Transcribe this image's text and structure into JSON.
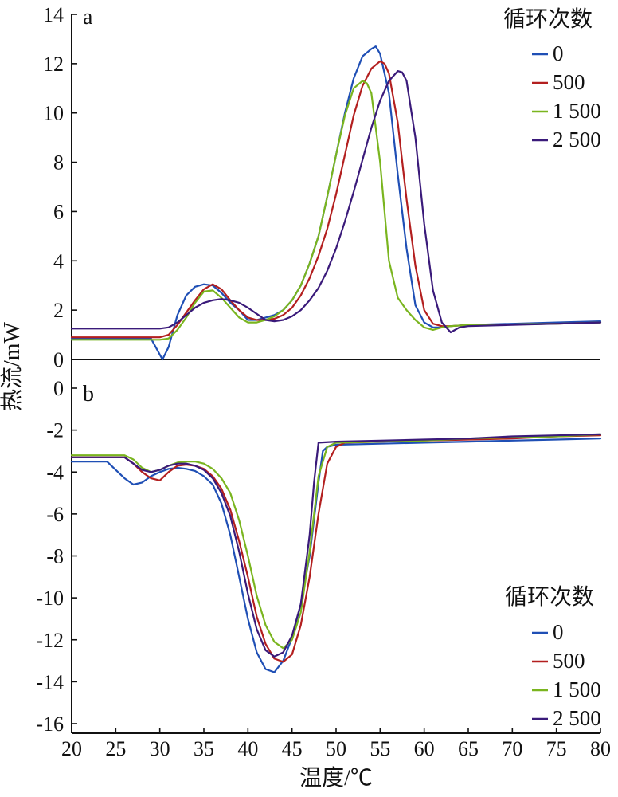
{
  "chart_data": [
    {
      "type": "line",
      "panel_label": "a",
      "x_ticks": [
        "20",
        "25",
        "30",
        "35",
        "40",
        "45",
        "50",
        "55",
        "60",
        "65",
        "70",
        "75",
        "80"
      ],
      "y_ticks": [
        "0",
        "2",
        "4",
        "6",
        "8",
        "10",
        "12",
        "14"
      ],
      "ylim": [
        0,
        14
      ],
      "xlim": [
        20,
        80
      ],
      "legend_title": "循环次数",
      "legend_position": "top-right",
      "series": [
        {
          "name": "0",
          "color": "#1f4fb5",
          "x": [
            20,
            29,
            30.3,
            31,
            32,
            33,
            34,
            35,
            36,
            37,
            38,
            39,
            40,
            41,
            42,
            43,
            44,
            45,
            46,
            47,
            48,
            49,
            50,
            51,
            52,
            53,
            54,
            54.5,
            55,
            56,
            57,
            58,
            59,
            60,
            61,
            62,
            63,
            65,
            70,
            75,
            80
          ],
          "y": [
            0.85,
            0.85,
            0,
            0.5,
            1.8,
            2.6,
            2.95,
            3.05,
            3.0,
            2.7,
            2.3,
            2.0,
            1.6,
            1.6,
            1.7,
            1.8,
            2.0,
            2.4,
            3.0,
            3.9,
            5.0,
            6.6,
            8.3,
            10.0,
            11.4,
            12.3,
            12.6,
            12.7,
            12.4,
            10.8,
            7.5,
            4.5,
            2.2,
            1.5,
            1.3,
            1.3,
            1.35,
            1.4,
            1.45,
            1.5,
            1.55
          ]
        },
        {
          "name": "500",
          "color": "#b31f1f",
          "x": [
            20,
            30,
            31,
            32,
            33,
            34,
            35,
            36,
            37,
            38,
            39,
            40,
            41,
            42,
            43,
            44,
            45,
            46,
            47,
            48,
            49,
            50,
            51,
            52,
            53,
            54,
            55,
            55.5,
            56,
            57,
            58,
            59,
            60,
            61,
            62,
            63,
            65,
            70,
            75,
            80
          ],
          "y": [
            0.9,
            0.9,
            1.0,
            1.4,
            1.9,
            2.4,
            2.85,
            3.05,
            2.85,
            2.4,
            2.0,
            1.7,
            1.6,
            1.6,
            1.65,
            1.8,
            2.1,
            2.6,
            3.3,
            4.2,
            5.3,
            6.7,
            8.3,
            9.9,
            11.1,
            11.8,
            12.1,
            12.0,
            11.6,
            9.6,
            6.5,
            3.8,
            2.0,
            1.45,
            1.35,
            1.35,
            1.4,
            1.42,
            1.45,
            1.5
          ]
        },
        {
          "name": "1 500",
          "color": "#7ab51f",
          "x": [
            20,
            30,
            31,
            32,
            33,
            34,
            35,
            36,
            37,
            38,
            39,
            40,
            41,
            42,
            43,
            44,
            45,
            46,
            47,
            48,
            49,
            50,
            51,
            52,
            53,
            53.5,
            54,
            55,
            56,
            57,
            58,
            59,
            60,
            61,
            62,
            63,
            65,
            70,
            75,
            80
          ],
          "y": [
            0.8,
            0.8,
            0.85,
            1.2,
            1.7,
            2.3,
            2.75,
            2.8,
            2.5,
            2.1,
            1.7,
            1.5,
            1.5,
            1.6,
            1.75,
            2.0,
            2.4,
            3.0,
            3.9,
            5.0,
            6.6,
            8.3,
            9.9,
            11.0,
            11.3,
            11.2,
            10.8,
            8.0,
            4.0,
            2.5,
            2.0,
            1.6,
            1.3,
            1.2,
            1.3,
            1.35,
            1.4,
            1.42,
            1.45,
            1.5
          ]
        },
        {
          "name": "2 500",
          "color": "#3a1a7a",
          "x": [
            20,
            30,
            31,
            32,
            33,
            34,
            35,
            36,
            37,
            38,
            39,
            40,
            41,
            42,
            43,
            44,
            45,
            46,
            47,
            48,
            49,
            50,
            51,
            52,
            53,
            54,
            55,
            56,
            57,
            57.5,
            58,
            59,
            60,
            61,
            62,
            63,
            64,
            65,
            70,
            75,
            80
          ],
          "y": [
            1.25,
            1.25,
            1.3,
            1.5,
            1.8,
            2.1,
            2.3,
            2.4,
            2.45,
            2.4,
            2.3,
            2.1,
            1.85,
            1.6,
            1.55,
            1.6,
            1.75,
            2.0,
            2.4,
            2.9,
            3.6,
            4.5,
            5.6,
            6.8,
            8.1,
            9.4,
            10.5,
            11.3,
            11.7,
            11.65,
            11.3,
            9.0,
            5.5,
            2.8,
            1.5,
            1.1,
            1.3,
            1.35,
            1.4,
            1.45,
            1.5
          ]
        }
      ]
    },
    {
      "type": "line",
      "panel_label": "b",
      "x_ticks": [
        "20",
        "25",
        "30",
        "35",
        "40",
        "45",
        "50",
        "55",
        "60",
        "65",
        "70",
        "75",
        "80"
      ],
      "y_ticks": [
        "0",
        "-2",
        "-4",
        "-6",
        "-8",
        "-10",
        "-12",
        "-14",
        "-16"
      ],
      "ylim": [
        -16,
        0
      ],
      "xlim": [
        20,
        80
      ],
      "legend_title": "循环次数",
      "legend_position": "bottom-right",
      "series": [
        {
          "name": "0",
          "color": "#1f4fb5",
          "x": [
            20,
            24,
            25,
            26,
            27,
            28,
            29,
            30,
            31,
            32,
            33,
            34,
            35,
            36,
            37,
            38,
            39,
            40,
            41,
            42,
            43,
            44,
            45,
            46,
            47,
            48,
            48.5,
            49,
            50,
            55,
            60,
            65,
            70,
            75,
            80
          ],
          "y": [
            -3.5,
            -3.5,
            -3.9,
            -4.3,
            -4.6,
            -4.5,
            -4.2,
            -4.0,
            -3.85,
            -3.8,
            -3.85,
            -3.95,
            -4.2,
            -4.6,
            -5.5,
            -7.0,
            -9.0,
            -11.0,
            -12.6,
            -13.4,
            -13.55,
            -13.0,
            -11.9,
            -10.3,
            -8.0,
            -4.5,
            -3.0,
            -2.8,
            -2.7,
            -2.65,
            -2.6,
            -2.55,
            -2.5,
            -2.45,
            -2.4
          ]
        },
        {
          "name": "500",
          "color": "#b31f1f",
          "x": [
            20,
            26,
            27,
            28,
            29,
            30,
            31,
            32,
            33,
            34,
            35,
            36,
            37,
            38,
            39,
            40,
            41,
            42,
            43,
            44,
            45,
            46,
            47,
            48,
            49,
            50,
            51,
            55,
            60,
            65,
            70,
            75,
            80
          ],
          "y": [
            -3.3,
            -3.3,
            -3.6,
            -4.0,
            -4.3,
            -4.4,
            -4.0,
            -3.7,
            -3.65,
            -3.7,
            -3.85,
            -4.2,
            -4.8,
            -5.8,
            -7.3,
            -9.0,
            -10.9,
            -12.2,
            -12.9,
            -13.05,
            -12.7,
            -11.3,
            -9.0,
            -6.0,
            -3.6,
            -2.8,
            -2.6,
            -2.55,
            -2.5,
            -2.45,
            -2.4,
            -2.3,
            -2.25
          ]
        },
        {
          "name": "1 500",
          "color": "#7ab51f",
          "x": [
            20,
            26,
            27,
            28,
            29,
            30,
            31,
            32,
            33,
            34,
            35,
            36,
            37,
            38,
            39,
            40,
            41,
            42,
            43,
            44,
            45,
            46,
            47,
            48,
            49,
            50,
            55,
            60,
            65,
            70,
            75,
            80
          ],
          "y": [
            -3.2,
            -3.2,
            -3.4,
            -3.8,
            -4.0,
            -3.9,
            -3.7,
            -3.55,
            -3.5,
            -3.5,
            -3.6,
            -3.85,
            -4.3,
            -5.0,
            -6.3,
            -8.0,
            -9.9,
            -11.3,
            -12.1,
            -12.4,
            -12.0,
            -10.7,
            -7.8,
            -4.2,
            -2.8,
            -2.6,
            -2.55,
            -2.5,
            -2.4,
            -2.35,
            -2.3,
            -2.2
          ]
        },
        {
          "name": "2 500",
          "color": "#3a1a7a",
          "x": [
            20,
            26,
            27,
            28,
            29,
            30,
            31,
            32,
            33,
            34,
            35,
            36,
            37,
            38,
            39,
            40,
            41,
            42,
            43,
            44,
            45,
            46,
            47,
            47.5,
            48,
            50,
            55,
            60,
            65,
            70,
            75,
            80
          ],
          "y": [
            -3.3,
            -3.3,
            -3.6,
            -3.9,
            -4.0,
            -3.9,
            -3.7,
            -3.6,
            -3.6,
            -3.7,
            -3.9,
            -4.3,
            -5.0,
            -6.1,
            -7.8,
            -9.8,
            -11.5,
            -12.5,
            -12.8,
            -12.6,
            -11.8,
            -10.3,
            -7.0,
            -4.5,
            -2.6,
            -2.55,
            -2.5,
            -2.45,
            -2.4,
            -2.3,
            -2.25,
            -2.2
          ]
        }
      ]
    }
  ],
  "shared_axis": {
    "xlabel": "温度/℃",
    "ylabel": "热流/mW"
  }
}
